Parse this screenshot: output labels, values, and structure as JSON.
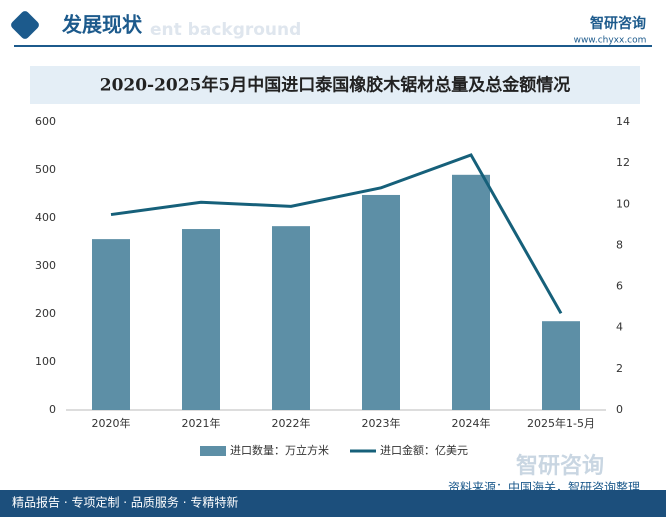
{
  "header": {
    "title": "发展现状",
    "subtitle": "ent background",
    "brand": "智研咨询",
    "url": "www.chyxx.com"
  },
  "chart_data": {
    "type": "bar-line",
    "title": "2020-2025年5月中国进口泰国橡胶木锯材总量及总金额情况",
    "categories": [
      "2020年",
      "2021年",
      "2022年",
      "2023年",
      "2024年",
      "2025年1-5月"
    ],
    "series": [
      {
        "name": "进口数量：万立方米",
        "color": "#5d8fa6",
        "type": "bar",
        "values": [
          356,
          377,
          383,
          448,
          490,
          185
        ]
      },
      {
        "name": "进口金额：亿美元",
        "color": "#16607a",
        "type": "line",
        "axis": "y2",
        "values": [
          9.5,
          10.1,
          9.9,
          10.8,
          12.4,
          4.7
        ]
      }
    ],
    "ylim": [
      0,
      600
    ],
    "yticks": [
      0,
      100,
      200,
      300,
      400,
      500,
      600
    ],
    "y2lim": [
      0,
      14
    ],
    "y2ticks": [
      0,
      2,
      4,
      6,
      8,
      10,
      12,
      14
    ],
    "grid": false
  },
  "footer": {
    "slogan": "精品报告 · 专项定制 · 品质服务 · 专精特新",
    "source": "资料来源：中国海关，智研咨询整理",
    "watermark": "智研咨询"
  }
}
